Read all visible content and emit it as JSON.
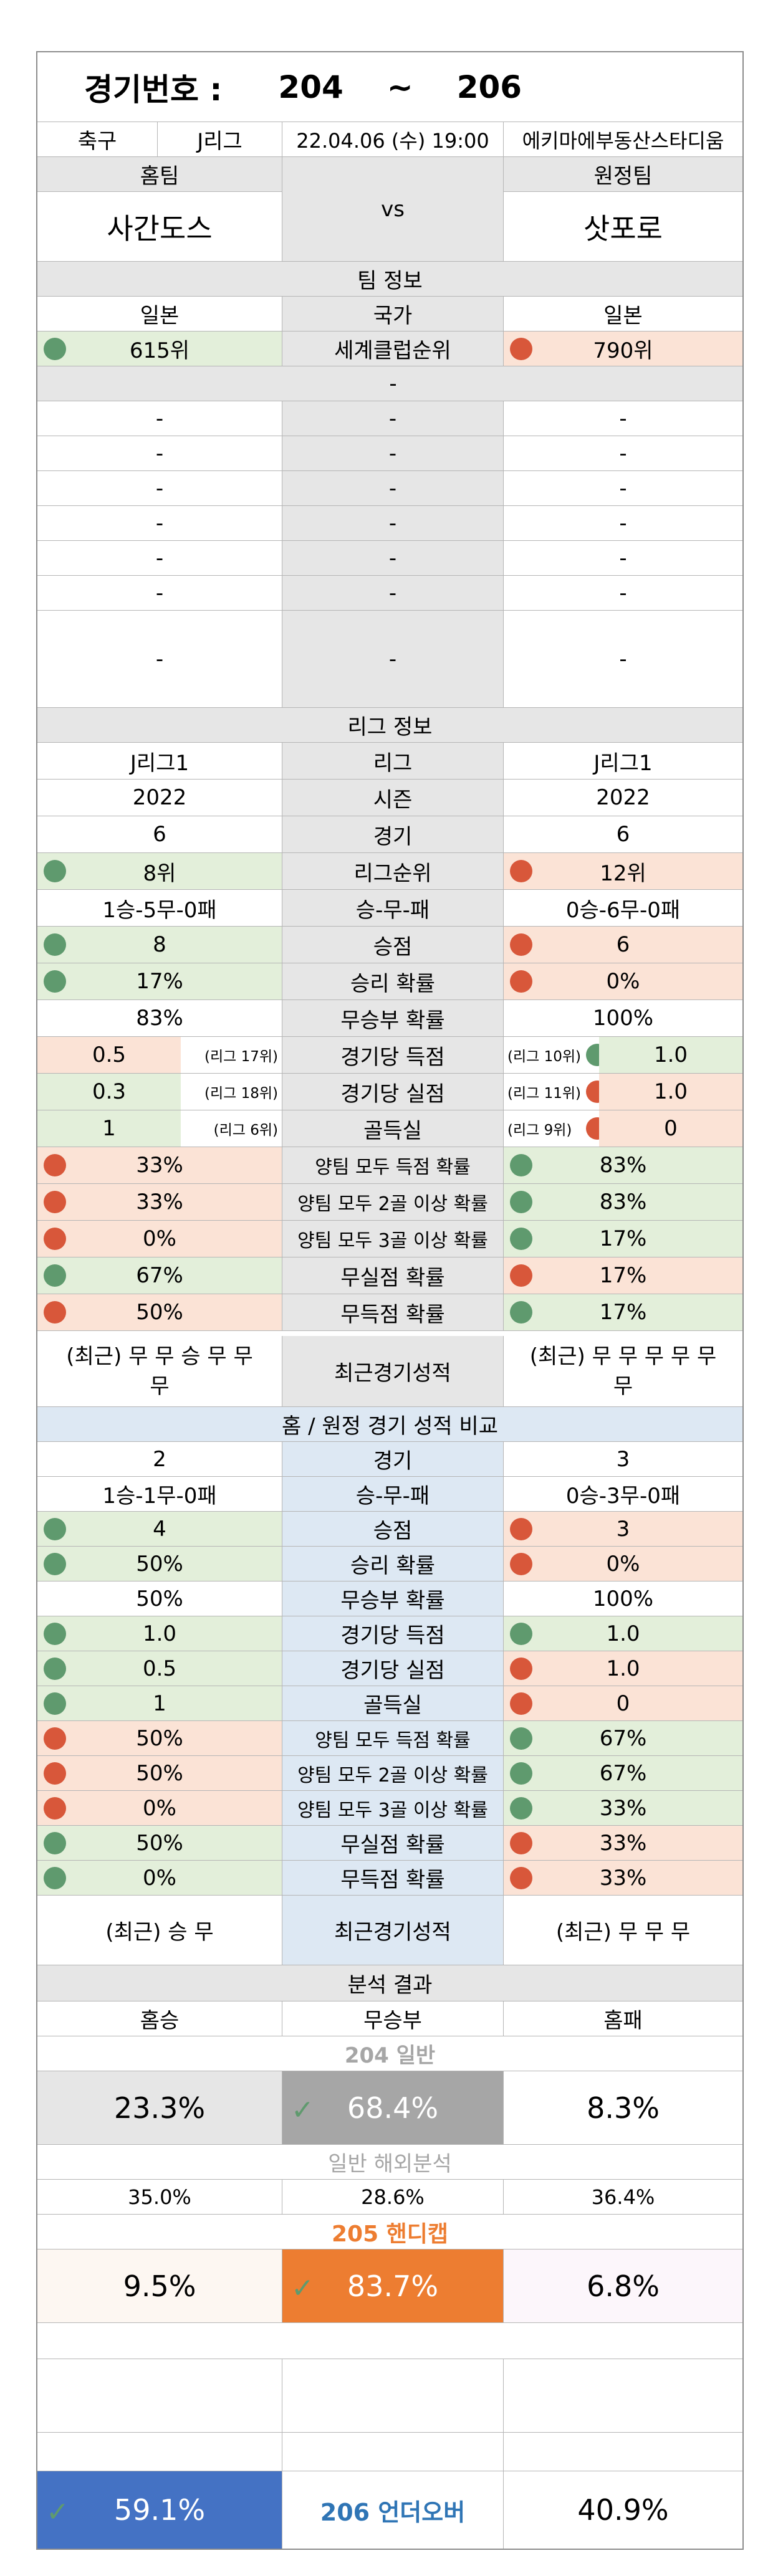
{
  "header": {
    "label": "경기번호 :",
    "num_from": "204",
    "tilde": "~",
    "num_to": "206"
  },
  "match": {
    "sport": "축구",
    "league": "J리그",
    "datetime": "22.04.06 (수) 19:00",
    "venue": "에키마에부동산스타디움"
  },
  "teams": {
    "home_label": "홈팀",
    "away_label": "원정팀",
    "home": "사간도스",
    "vs": "vs",
    "away": "삿포로"
  },
  "team_info": {
    "title": "팀 정보",
    "rows": [
      {
        "home": "일본",
        "label": "국가",
        "away": "일본"
      },
      {
        "home": "615위",
        "label": "세계클럽순위",
        "away": "790위",
        "home_dot": "green",
        "away_dot": "red"
      },
      {
        "home": "",
        "label": "-",
        "away": ""
      },
      {
        "home": "-",
        "label": "-",
        "away": "-"
      },
      {
        "home": "-",
        "label": "-",
        "away": "-"
      },
      {
        "home": "-",
        "label": "-",
        "away": "-"
      },
      {
        "home": "-",
        "label": "-",
        "away": "-"
      },
      {
        "home": "-",
        "label": "-",
        "away": "-"
      },
      {
        "home": "-",
        "label": "-",
        "away": "-"
      },
      {
        "home": "-",
        "label": "-",
        "away": "-"
      }
    ]
  },
  "league_info": {
    "title": "리그 정보",
    "rows": [
      {
        "home": "J리그1",
        "label": "리그",
        "away": "J리그1"
      },
      {
        "home": "2022",
        "label": "시즌",
        "away": "2022"
      },
      {
        "home": "6",
        "label": "경기",
        "away": "6"
      },
      {
        "home": "8위",
        "label": "리그순위",
        "away": "12위",
        "home_dot": "green",
        "away_dot": "red"
      },
      {
        "home": "1승-5무-0패",
        "label": "승-무-패",
        "away": "0승-6무-0패"
      },
      {
        "home": "8",
        "label": "승점",
        "away": "6",
        "home_dot": "green",
        "away_dot": "red"
      },
      {
        "home": "17%",
        "label": "승리 확률",
        "away": "0%",
        "home_dot": "green",
        "away_dot": "red"
      },
      {
        "home": "83%",
        "label": "무승부 확률",
        "away": "100%"
      },
      {
        "home": "0.5",
        "home_rank": "(리그 17위)",
        "label": "경기당 득점",
        "away": "1.0",
        "away_rank": "(리그 10위)",
        "home_dot": "red",
        "away_dot": "green"
      },
      {
        "home": "0.3",
        "home_rank": "(리그 18위)",
        "label": "경기당 실점",
        "away": "1.0",
        "away_rank": "(리그 11위)",
        "home_dot": "green",
        "away_dot": "red"
      },
      {
        "home": "1",
        "home_rank": "(리그 6위)",
        "label": "골득실",
        "away": "0",
        "away_rank": "(리그 9위)",
        "home_dot": "green",
        "away_dot": "red"
      },
      {
        "home": "33%",
        "label": "양팀 모두 득점 확률",
        "away": "83%",
        "home_dot": "red",
        "away_dot": "green"
      },
      {
        "home": "33%",
        "label": "양팀 모두 2골 이상 확률",
        "away": "83%",
        "home_dot": "red",
        "away_dot": "green"
      },
      {
        "home": "0%",
        "label": "양팀 모두 3골 이상 확률",
        "away": "17%",
        "home_dot": "red",
        "away_dot": "green"
      },
      {
        "home": "67%",
        "label": "무실점 확률",
        "away": "17%",
        "home_dot": "green",
        "away_dot": "red"
      },
      {
        "home": "50%",
        "label": "무득점 확률",
        "away": "17%",
        "home_dot": "red",
        "away_dot": "green"
      }
    ],
    "recent": {
      "home_1": "(최근) 무 무 승 무 무",
      "home_2": "무",
      "label": "최근경기성적",
      "away_1": "(최근) 무 무 무 무 무",
      "away_2": "무"
    }
  },
  "venue_compare": {
    "title": "홈 / 원정 경기 성적 비교",
    "rows": [
      {
        "home": "2",
        "label": "경기",
        "away": "3"
      },
      {
        "home": "1승-1무-0패",
        "label": "승-무-패",
        "away": "0승-3무-0패"
      },
      {
        "home": "4",
        "label": "승점",
        "away": "3",
        "home_dot": "green",
        "away_dot": "red"
      },
      {
        "home": "50%",
        "label": "승리 확률",
        "away": "0%",
        "home_dot": "green",
        "away_dot": "red"
      },
      {
        "home": "50%",
        "label": "무승부 확률",
        "away": "100%"
      },
      {
        "home": "1.0",
        "label": "경기당 득점",
        "away": "1.0",
        "home_dot": "green",
        "away_dot": "green"
      },
      {
        "home": "0.5",
        "label": "경기당 실점",
        "away": "1.0",
        "home_dot": "green",
        "away_dot": "red"
      },
      {
        "home": "1",
        "label": "골득실",
        "away": "0",
        "home_dot": "green",
        "away_dot": "red"
      },
      {
        "home": "50%",
        "label": "양팀 모두 득점 확률",
        "away": "67%",
        "home_dot": "red",
        "away_dot": "green"
      },
      {
        "home": "50%",
        "label": "양팀 모두 2골 이상 확률",
        "away": "67%",
        "home_dot": "red",
        "away_dot": "green"
      },
      {
        "home": "0%",
        "label": "양팀 모두 3골 이상 확률",
        "away": "33%",
        "home_dot": "red",
        "away_dot": "green"
      },
      {
        "home": "50%",
        "label": "무실점 확률",
        "away": "33%",
        "home_dot": "green",
        "away_dot": "red"
      },
      {
        "home": "0%",
        "label": "무득점 확률",
        "away": "33%",
        "home_dot": "green",
        "away_dot": "red"
      }
    ],
    "recent": {
      "home": "(최근) 승 무",
      "label": "최근경기성적",
      "away": "(최근) 무 무 무"
    }
  },
  "analysis": {
    "title": "분석 결과",
    "col_win": "홈승",
    "col_draw": "무승부",
    "col_loss": "홈패",
    "general_title": "204 일반",
    "general": {
      "win": "23.3%",
      "draw": "68.4%",
      "loss": "8.3%"
    },
    "overseas_title": "일반 해외분석",
    "overseas": {
      "win": "35.0%",
      "draw": "28.6%",
      "loss": "36.4%"
    },
    "handicap_title": "205 핸디캡",
    "handicap": {
      "win": "9.5%",
      "draw": "83.7%",
      "loss": "6.8%"
    },
    "underover": {
      "left": "59.1%",
      "label": "206 언더오버",
      "right": "40.9%"
    }
  },
  "colors": {
    "green_dot": "#5f9a6e",
    "red_dot": "#d8573a",
    "orange": "#ed7d31",
    "blue": "#4472c4"
  }
}
